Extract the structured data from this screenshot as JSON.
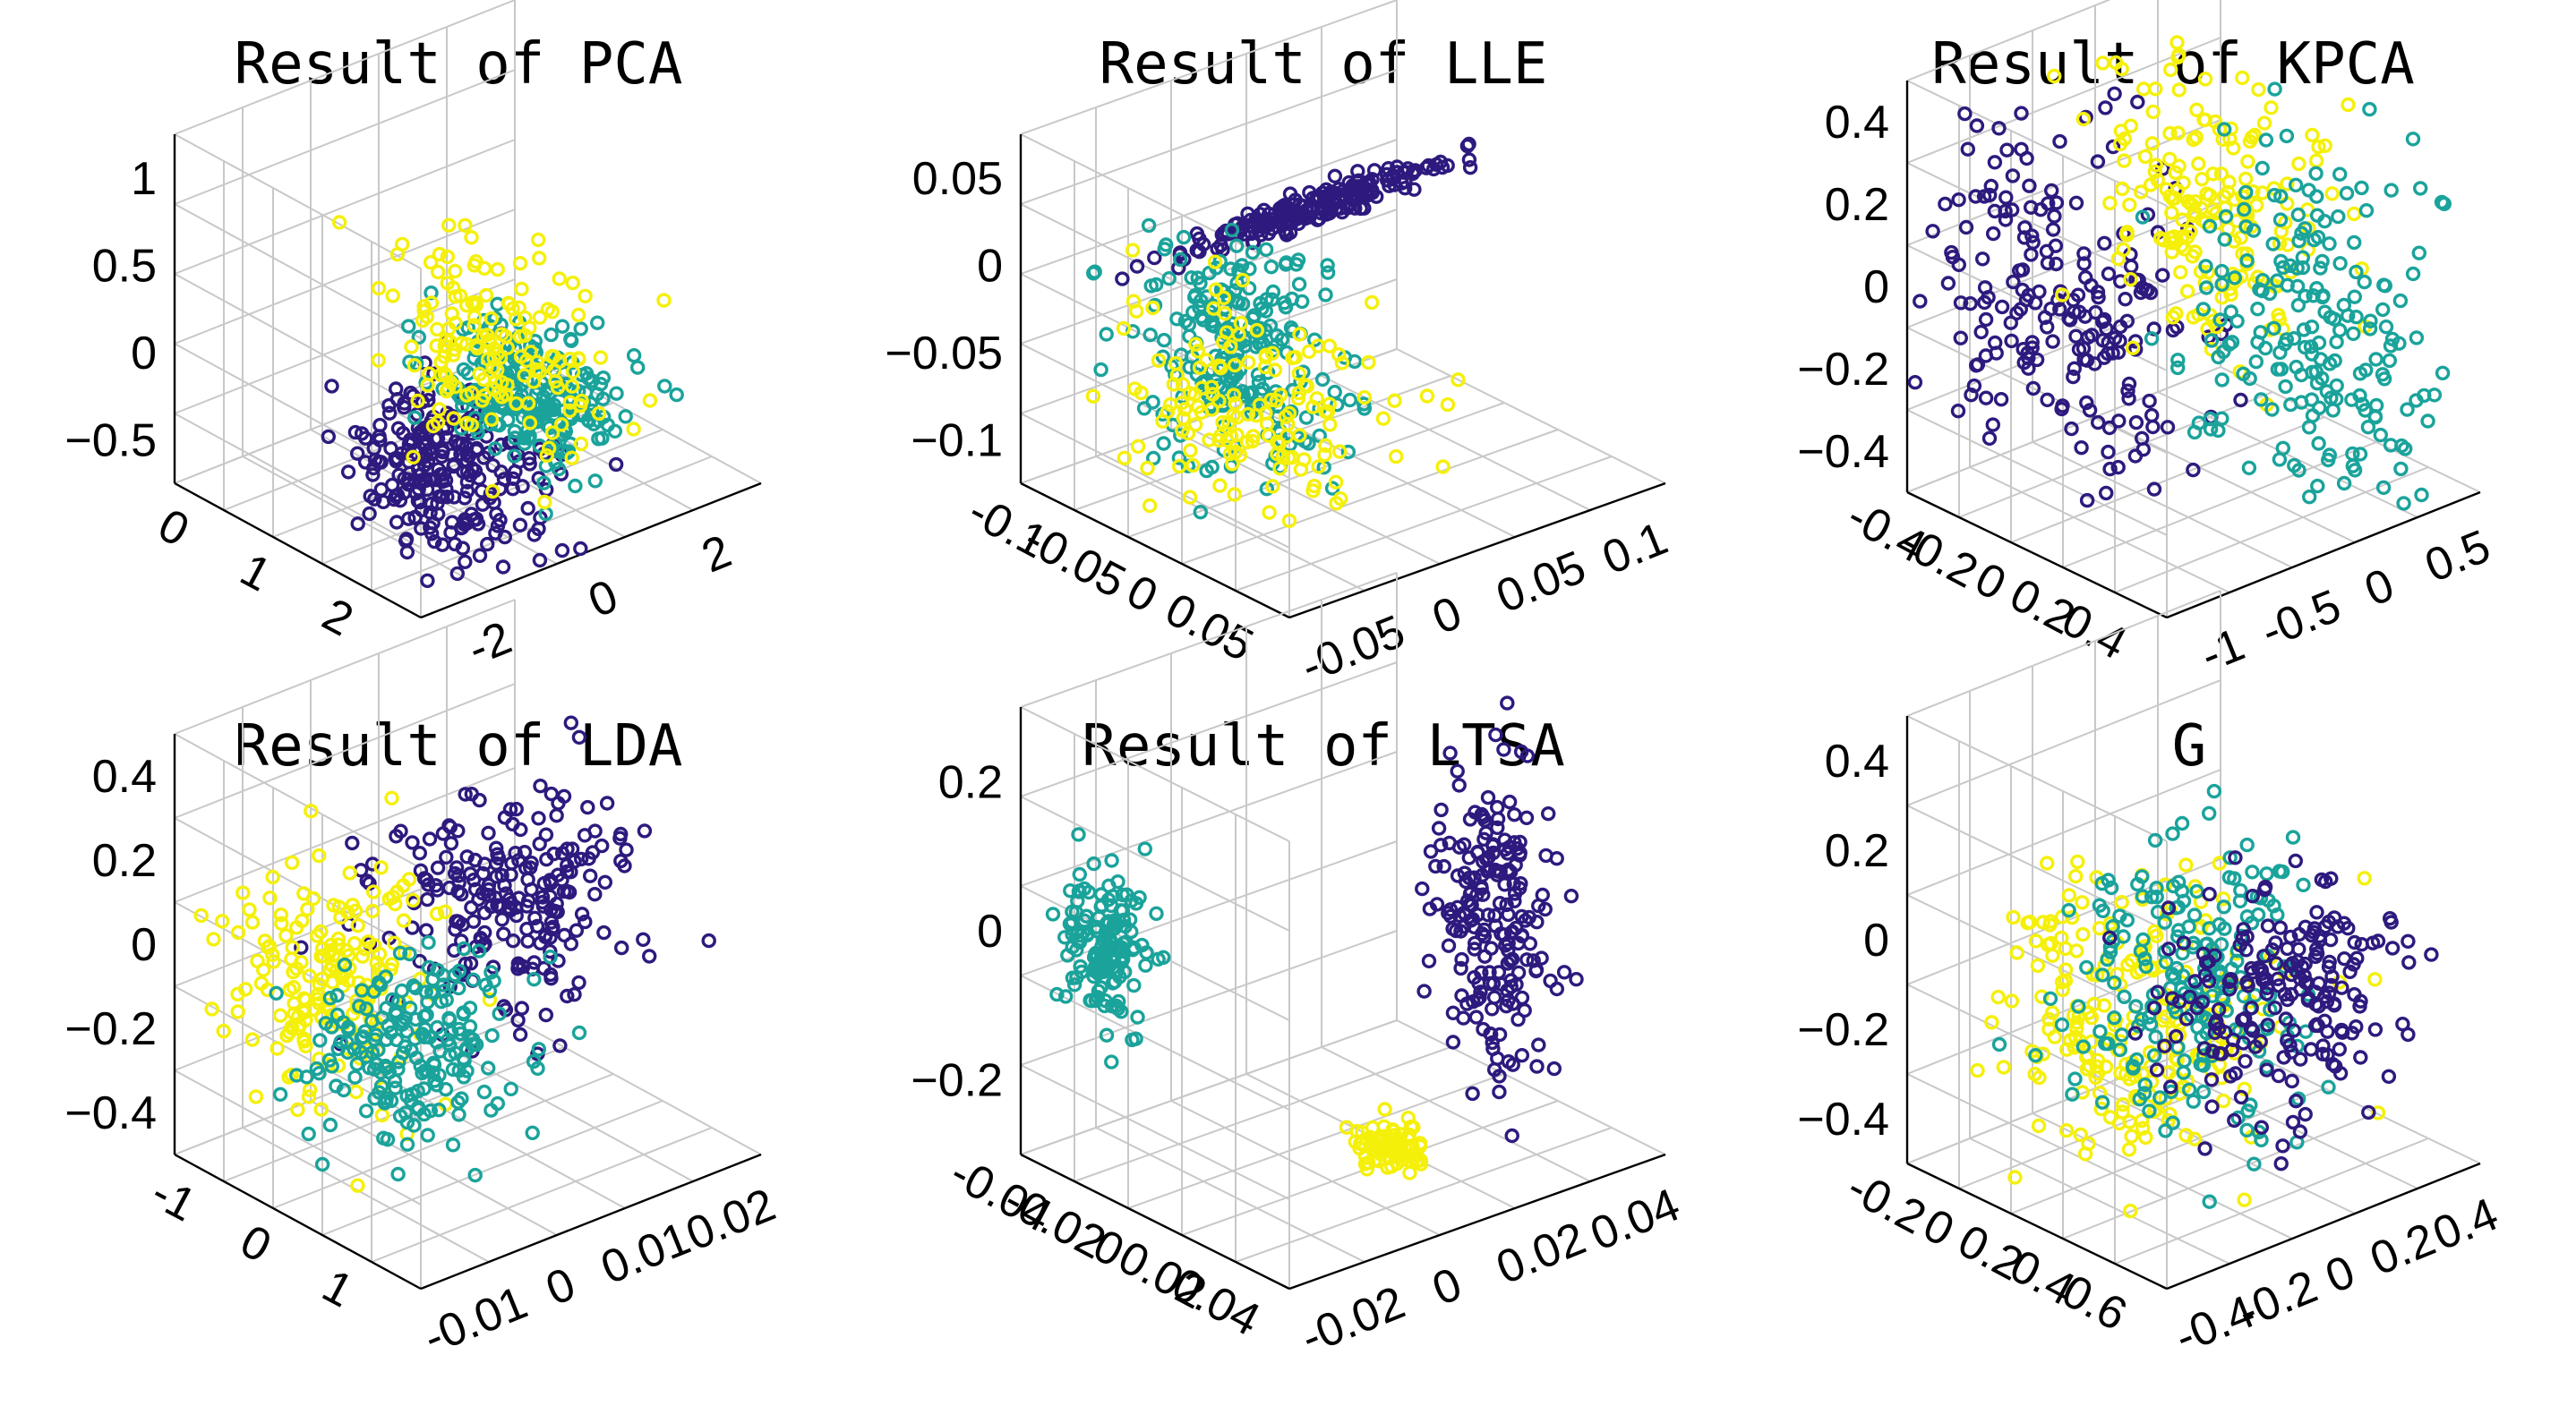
{
  "colors": {
    "class_a": "#2e1a7e",
    "class_b": "#1aa39b",
    "class_c": "#f5f00a"
  },
  "chart_data": [
    {
      "type": "scatter3d",
      "title": "Result of PCA",
      "axes": {
        "x": {
          "ticks": [
            "-2",
            "0",
            "2"
          ],
          "range": [
            -2.5,
            2.5
          ]
        },
        "y": {
          "ticks": [
            "0",
            "1",
            "2"
          ],
          "range": [
            -0.5,
            2.5
          ]
        },
        "z": {
          "ticks": [
            "1",
            "0.5",
            "0",
            "−0.5"
          ],
          "range": [
            -0.8,
            1.3
          ]
        }
      },
      "grid": true,
      "clusters": [
        {
          "class": "class_a",
          "n": 240,
          "center": [
            -0.9,
            0.5,
            -0.45
          ],
          "spread": [
            0.45,
            0.5,
            0.22
          ]
        },
        {
          "class": "class_b",
          "n": 220,
          "center": [
            0.5,
            0.6,
            -0.25
          ],
          "spread": [
            0.4,
            0.4,
            0.18
          ]
        },
        {
          "class": "class_c",
          "n": 160,
          "center": [
            0.2,
            0.9,
            0.05
          ],
          "spread": [
            0.5,
            0.55,
            0.3
          ]
        }
      ]
    },
    {
      "type": "scatter3d",
      "title": "Result of LLE",
      "axes": {
        "x": {
          "ticks": [
            "-0.05",
            "0",
            "0.05",
            "0.1"
          ],
          "range": [
            -0.08,
            0.12
          ]
        },
        "y": {
          "ticks": [
            "-0.1",
            "-0.05",
            "0",
            "0.05"
          ],
          "range": [
            -0.12,
            0.07
          ]
        },
        "z": {
          "ticks": [
            "0.05",
            "0",
            "−0.05",
            "−0.1"
          ],
          "range": [
            -0.12,
            0.09
          ]
        }
      },
      "grid": true,
      "clusters": [
        {
          "class": "class_a",
          "n": 200,
          "center": [
            0.04,
            0.02,
            0.02
          ],
          "spread": [
            0.035,
            0.004,
            0.004
          ]
        },
        {
          "class": "class_b",
          "n": 220,
          "center": [
            -0.04,
            -0.03,
            -0.02
          ],
          "spread": [
            0.02,
            0.03,
            0.035
          ]
        },
        {
          "class": "class_c",
          "n": 150,
          "center": [
            -0.03,
            -0.04,
            -0.045
          ],
          "spread": [
            0.025,
            0.03,
            0.03
          ]
        }
      ]
    },
    {
      "type": "scatter3d",
      "title": "Result of KPCA",
      "axes": {
        "x": {
          "ticks": [
            "-1",
            "-0.5",
            "0",
            "0.5"
          ],
          "range": [
            -1.1,
            0.65
          ]
        },
        "y": {
          "ticks": [
            "-0.4",
            "-0.2",
            "0",
            "0.2",
            "0.4"
          ],
          "range": [
            -0.55,
            0.5
          ]
        },
        "z": {
          "ticks": [
            "0.4",
            "0.2",
            "0",
            "−0.2",
            "−0.4"
          ],
          "range": [
            -0.5,
            0.5
          ]
        }
      },
      "grid": true,
      "clusters": [
        {
          "class": "class_a",
          "n": 200,
          "center": [
            -0.75,
            0.1,
            0.0
          ],
          "spread": [
            0.15,
            0.25,
            0.2
          ]
        },
        {
          "class": "class_c",
          "n": 180,
          "center": [
            -0.2,
            -0.05,
            0.2
          ],
          "spread": [
            0.22,
            0.2,
            0.15
          ]
        },
        {
          "class": "class_b",
          "n": 200,
          "center": [
            0.3,
            -0.1,
            -0.15
          ],
          "spread": [
            0.15,
            0.25,
            0.2
          ]
        }
      ]
    },
    {
      "type": "scatter3d",
      "title": "Result of LDA",
      "axes": {
        "x": {
          "ticks": [
            "-0.01",
            "0",
            "0.01",
            "0.02"
          ],
          "range": [
            -0.015,
            0.025
          ]
        },
        "y": {
          "ticks": [
            "-1",
            "0",
            "1"
          ],
          "range": [
            -1.3,
            1.3
          ]
        },
        "z": {
          "ticks": [
            "0.4",
            "0.2",
            "0",
            "−0.2",
            "−0.4"
          ],
          "range": [
            -0.5,
            0.5
          ]
        }
      },
      "grid": true,
      "clusters": [
        {
          "class": "class_a",
          "n": 220,
          "center": [
            0.008,
            -0.1,
            0.1
          ],
          "spread": [
            0.006,
            0.4,
            0.12
          ]
        },
        {
          "class": "class_c",
          "n": 180,
          "center": [
            -0.006,
            0.4,
            -0.05
          ],
          "spread": [
            0.005,
            0.35,
            0.12
          ]
        },
        {
          "class": "class_b",
          "n": 200,
          "center": [
            0.0,
            0.1,
            -0.22
          ],
          "spread": [
            0.005,
            0.3,
            0.1
          ]
        }
      ]
    },
    {
      "type": "scatter3d",
      "title": "Result of LTSA",
      "axes": {
        "x": {
          "ticks": [
            "-0.02",
            "0",
            "0.02",
            "0.04"
          ],
          "range": [
            -0.035,
            0.05
          ]
        },
        "y": {
          "ticks": [
            "-0.04",
            "-0.02",
            "0",
            "0.02",
            "0.04"
          ],
          "range": [
            -0.05,
            0.05
          ]
        },
        "z": {
          "ticks": [
            "0.2",
            "0",
            "−0.2"
          ],
          "range": [
            -0.22,
            0.22
          ]
        }
      },
      "grid": true,
      "clusters": [
        {
          "class": "class_b",
          "n": 150,
          "center": [
            -0.028,
            0.03,
            0.0
          ],
          "spread": [
            0.003,
            0.006,
            0.04
          ]
        },
        {
          "class": "class_a",
          "n": 200,
          "center": [
            0.035,
            -0.01,
            -0.02
          ],
          "spread": [
            0.004,
            0.008,
            0.08
          ]
        },
        {
          "class": "class_c",
          "n": 80,
          "center": [
            0.0,
            -0.03,
            -0.16
          ],
          "spread": [
            0.003,
            0.005,
            0.01
          ]
        }
      ]
    },
    {
      "type": "scatter3d",
      "title": "G",
      "axes": {
        "x": {
          "ticks": [
            "-0.4",
            "-0.2",
            "0",
            "0.2",
            "0.4"
          ],
          "range": [
            -0.5,
            0.5
          ]
        },
        "y": {
          "ticks": [
            "-0.2",
            "0",
            "0.2",
            "0.4",
            "0.6"
          ],
          "range": [
            -0.3,
            0.7
          ]
        },
        "z": {
          "ticks": [
            "0.4",
            "0.2",
            "0",
            "−0.2",
            "−0.4"
          ],
          "range": [
            -0.5,
            0.5
          ]
        }
      },
      "grid": true,
      "clusters": [
        {
          "class": "class_c",
          "n": 220,
          "center": [
            -0.15,
            0.25,
            -0.15
          ],
          "spread": [
            0.18,
            0.18,
            0.15
          ]
        },
        {
          "class": "class_b",
          "n": 200,
          "center": [
            0.0,
            0.2,
            -0.1
          ],
          "spread": [
            0.15,
            0.15,
            0.14
          ]
        },
        {
          "class": "class_a",
          "n": 200,
          "center": [
            0.18,
            0.1,
            -0.15
          ],
          "spread": [
            0.15,
            0.15,
            0.12
          ]
        }
      ]
    }
  ]
}
